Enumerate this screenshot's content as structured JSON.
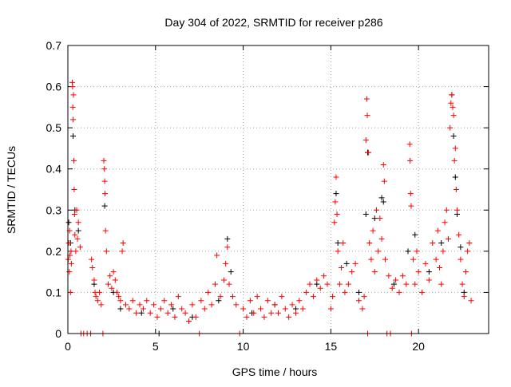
{
  "chart_data": {
    "type": "scatter",
    "title": "Day 304 of 2022, SRMTID for receiver p286",
    "xlabel": "GPS time / hours",
    "ylabel": "SRMTID / TECUs",
    "xlim": [
      0,
      24
    ],
    "ylim": [
      0,
      0.7
    ],
    "xticks": [
      "0",
      "5",
      "10",
      "15",
      "20"
    ],
    "xtick_values": [
      0,
      5,
      10,
      15,
      20
    ],
    "yticks": [
      "0",
      "0.1",
      "0.2",
      "0.3",
      "0.4",
      "0.5",
      "0.6",
      "0.7"
    ],
    "ytick_values": [
      0,
      0.1,
      0.2,
      0.3,
      0.4,
      0.5,
      0.6,
      0.7
    ],
    "grid": true,
    "marker": "+",
    "series": [
      {
        "color": "#000000",
        "points": [
          [
            0.05,
            0.27
          ],
          [
            0.15,
            0.22
          ],
          [
            0.3,
            0.48
          ],
          [
            0.4,
            0.3
          ],
          [
            0.6,
            0.25
          ],
          [
            1.5,
            0.12
          ],
          [
            2.1,
            0.31
          ],
          [
            2.6,
            0.1
          ],
          [
            3.0,
            0.06
          ],
          [
            4.2,
            0.05
          ],
          [
            5.2,
            0
          ],
          [
            6.0,
            0.06
          ],
          [
            7.1,
            0.04
          ],
          [
            8.6,
            0.08
          ],
          [
            9.1,
            0.23
          ],
          [
            9.3,
            0.15
          ],
          [
            10.5,
            0.05
          ],
          [
            11.8,
            0.07
          ],
          [
            13.0,
            0.06
          ],
          [
            14.2,
            0.12
          ],
          [
            15.3,
            0.34
          ],
          [
            15.4,
            0.22
          ],
          [
            15.9,
            0.17
          ],
          [
            16.6,
            0.1
          ],
          [
            17.0,
            0.29
          ],
          [
            17.1,
            0.44
          ],
          [
            17.5,
            0.28
          ],
          [
            17.9,
            0.33
          ],
          [
            18.0,
            0.32
          ],
          [
            18.6,
            0.12
          ],
          [
            19.4,
            0.2
          ],
          [
            19.8,
            0.24
          ],
          [
            20.6,
            0.15
          ],
          [
            21.3,
            0.22
          ],
          [
            21.9,
            0.58
          ],
          [
            22.0,
            0.48
          ],
          [
            22.1,
            0.38
          ],
          [
            22.2,
            0.29
          ],
          [
            22.4,
            0.21
          ],
          [
            22.6,
            0.1
          ]
        ]
      },
      {
        "color": "#ff0000",
        "points": [
          [
            0.02,
            0.18
          ],
          [
            0.05,
            0.22
          ],
          [
            0.08,
            0.15
          ],
          [
            0.1,
            0.25
          ],
          [
            0.12,
            0.19
          ],
          [
            0.15,
            0.1
          ],
          [
            0.18,
            0.2
          ],
          [
            0.2,
            0.17
          ],
          [
            0.25,
            0.61
          ],
          [
            0.27,
            0.6
          ],
          [
            0.28,
            0.55
          ],
          [
            0.3,
            0.52
          ],
          [
            0.32,
            0.58
          ],
          [
            0.34,
            0.42
          ],
          [
            0.36,
            0.35
          ],
          [
            0.38,
            0.29
          ],
          [
            0.4,
            0.24
          ],
          [
            0.45,
            0.2
          ],
          [
            0.5,
            0.3
          ],
          [
            0.55,
            0.23
          ],
          [
            0.6,
            0.27
          ],
          [
            0.7,
            0.21
          ],
          [
            0.75,
            0
          ],
          [
            0.9,
            0
          ],
          [
            1.1,
            0
          ],
          [
            1.3,
            0
          ],
          [
            1.35,
            0.18
          ],
          [
            1.4,
            0.16
          ],
          [
            1.5,
            0.13
          ],
          [
            1.55,
            0.1
          ],
          [
            1.6,
            0.09
          ],
          [
            1.7,
            0.08
          ],
          [
            1.8,
            0.1
          ],
          [
            1.9,
            0.07
          ],
          [
            2.0,
            0
          ],
          [
            2.05,
            0.42
          ],
          [
            2.08,
            0.4
          ],
          [
            2.1,
            0.37
          ],
          [
            2.12,
            0.34
          ],
          [
            2.15,
            0.25
          ],
          [
            2.2,
            0.2
          ],
          [
            2.3,
            0.12
          ],
          [
            2.4,
            0.14
          ],
          [
            2.5,
            0.11
          ],
          [
            2.6,
            0.15
          ],
          [
            2.7,
            0.13
          ],
          [
            2.8,
            0.1
          ],
          [
            2.9,
            0.09
          ],
          [
            3.0,
            0.08
          ],
          [
            3.1,
            0.2
          ],
          [
            3.15,
            0.22
          ],
          [
            3.3,
            0.07
          ],
          [
            3.5,
            0.06
          ],
          [
            3.7,
            0.08
          ],
          [
            3.9,
            0.05
          ],
          [
            4.1,
            0.07
          ],
          [
            4.3,
            0.06
          ],
          [
            4.5,
            0.08
          ],
          [
            4.7,
            0.05
          ],
          [
            4.9,
            0.07
          ],
          [
            5.1,
            0.04
          ],
          [
            5.3,
            0.06
          ],
          [
            5.5,
            0.08
          ],
          [
            5.7,
            0.05
          ],
          [
            5.9,
            0.07
          ],
          [
            6.1,
            0.04
          ],
          [
            6.3,
            0.09
          ],
          [
            6.5,
            0.06
          ],
          [
            6.7,
            0.05
          ],
          [
            6.9,
            0.03
          ],
          [
            7.1,
            0.07
          ],
          [
            7.3,
            0.04
          ],
          [
            7.5,
            0
          ],
          [
            7.6,
            0.08
          ],
          [
            7.8,
            0.06
          ],
          [
            8.0,
            0.1
          ],
          [
            8.2,
            0.07
          ],
          [
            8.4,
            0.12
          ],
          [
            8.5,
            0.19
          ],
          [
            8.7,
            0.09
          ],
          [
            8.9,
            0.13
          ],
          [
            9.0,
            0.17
          ],
          [
            9.1,
            0.21
          ],
          [
            9.2,
            0.12
          ],
          [
            9.4,
            0.09
          ],
          [
            9.6,
            0.07
          ],
          [
            9.8,
            0
          ],
          [
            10.0,
            0.06
          ],
          [
            10.2,
            0.04
          ],
          [
            10.4,
            0.08
          ],
          [
            10.6,
            0.05
          ],
          [
            10.8,
            0.09
          ],
          [
            11.0,
            0.06
          ],
          [
            11.2,
            0.04
          ],
          [
            11.4,
            0.08
          ],
          [
            11.6,
            0.05
          ],
          [
            11.8,
            0.07
          ],
          [
            12.0,
            0.05
          ],
          [
            12.2,
            0.09
          ],
          [
            12.4,
            0.06
          ],
          [
            12.6,
            0.04
          ],
          [
            12.8,
            0.07
          ],
          [
            13.0,
            0.05
          ],
          [
            13.2,
            0.08
          ],
          [
            13.4,
            0.06
          ],
          [
            13.6,
            0.1
          ],
          [
            13.8,
            0.12
          ],
          [
            14.0,
            0.09
          ],
          [
            14.2,
            0.13
          ],
          [
            14.4,
            0.11
          ],
          [
            14.6,
            0.14
          ],
          [
            14.8,
            0.12
          ],
          [
            15.0,
            0.06
          ],
          [
            15.1,
            0.09
          ],
          [
            15.2,
            0.27
          ],
          [
            15.25,
            0.32
          ],
          [
            15.3,
            0.38
          ],
          [
            15.35,
            0.29
          ],
          [
            15.4,
            0.2
          ],
          [
            15.5,
            0.12
          ],
          [
            15.6,
            0.16
          ],
          [
            15.7,
            0.22
          ],
          [
            15.8,
            0.1
          ],
          [
            16.0,
            0.12
          ],
          [
            16.2,
            0.15
          ],
          [
            16.4,
            0.17
          ],
          [
            16.6,
            0.08
          ],
          [
            16.8,
            0.06
          ],
          [
            16.9,
            0.09
          ],
          [
            17.0,
            0.47
          ],
          [
            17.05,
            0.57
          ],
          [
            17.08,
            0.53
          ],
          [
            17.1,
            0
          ],
          [
            17.15,
            0.44
          ],
          [
            17.2,
            0.22
          ],
          [
            17.3,
            0.18
          ],
          [
            17.4,
            0.25
          ],
          [
            17.5,
            0.15
          ],
          [
            17.6,
            0.3
          ],
          [
            17.7,
            0.2
          ],
          [
            17.8,
            0.28
          ],
          [
            17.9,
            0.23
          ],
          [
            18.0,
            0.41
          ],
          [
            18.05,
            0.37
          ],
          [
            18.1,
            0.18
          ],
          [
            18.2,
            0
          ],
          [
            18.3,
            0.14
          ],
          [
            18.4,
            0
          ],
          [
            18.5,
            0.11
          ],
          [
            18.7,
            0.13
          ],
          [
            18.9,
            0.1
          ],
          [
            19.1,
            0.14
          ],
          [
            19.3,
            0.12
          ],
          [
            19.5,
            0.46
          ],
          [
            19.52,
            0.42
          ],
          [
            19.55,
            0.34
          ],
          [
            19.58,
            0.31
          ],
          [
            19.6,
            0
          ],
          [
            19.7,
            0.18
          ],
          [
            19.8,
            0.12
          ],
          [
            19.9,
            0.2
          ],
          [
            20.0,
            0.15
          ],
          [
            20.2,
            0.1
          ],
          [
            20.4,
            0.17
          ],
          [
            20.6,
            0.13
          ],
          [
            20.8,
            0.22
          ],
          [
            21.0,
            0.18
          ],
          [
            21.1,
            0.25
          ],
          [
            21.2,
            0.16
          ],
          [
            21.3,
            0.12
          ],
          [
            21.4,
            0.2
          ],
          [
            21.5,
            0.27
          ],
          [
            21.6,
            0.3
          ],
          [
            21.7,
            0.23
          ],
          [
            21.8,
            0.5
          ],
          [
            21.85,
            0.56
          ],
          [
            21.9,
            0.58
          ],
          [
            21.95,
            0.55
          ],
          [
            22.0,
            0.53
          ],
          [
            22.05,
            0.42
          ],
          [
            22.1,
            0.45
          ],
          [
            22.15,
            0.35
          ],
          [
            22.2,
            0.3
          ],
          [
            22.3,
            0.24
          ],
          [
            22.4,
            0.18
          ],
          [
            22.5,
            0.12
          ],
          [
            22.6,
            0.09
          ],
          [
            22.7,
            0.15
          ],
          [
            22.8,
            0.2
          ],
          [
            22.9,
            0.22
          ],
          [
            23.0,
            0.08
          ]
        ]
      }
    ]
  }
}
